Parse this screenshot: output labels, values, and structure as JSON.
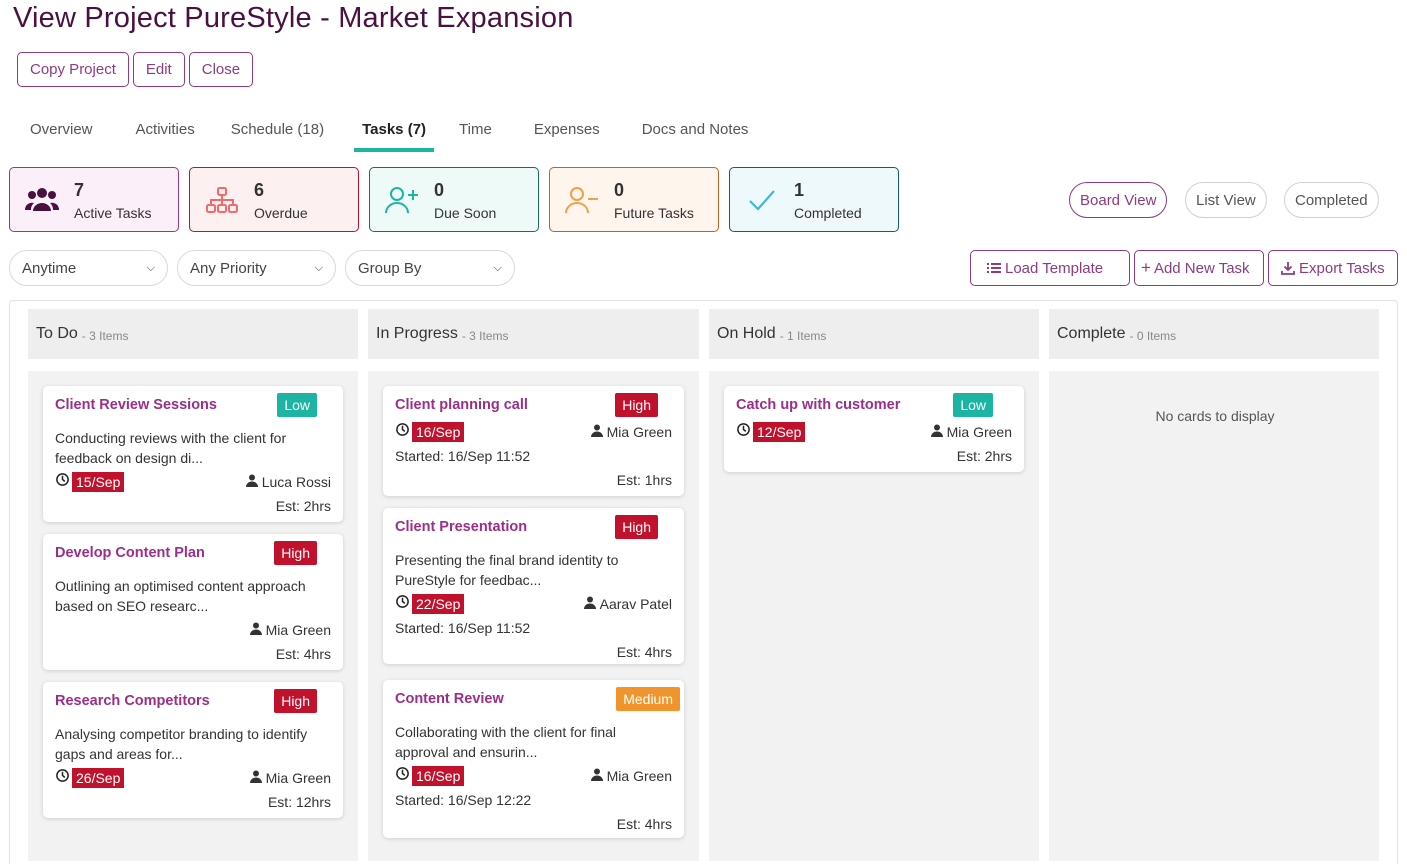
{
  "page": {
    "title": "View Project PureStyle - Market Expansion"
  },
  "actions": {
    "copy": "Copy Project",
    "edit": "Edit",
    "close": "Close"
  },
  "tabs": [
    {
      "label": "Overview"
    },
    {
      "label": "Activities"
    },
    {
      "label": "Schedule (18)"
    },
    {
      "label": "Tasks (7)"
    },
    {
      "label": "Time"
    },
    {
      "label": "Expenses"
    },
    {
      "label": "Docs and Notes"
    }
  ],
  "stats": [
    {
      "num": "7",
      "label": "Active Tasks",
      "icon": "users-icon",
      "color": "#4a1040"
    },
    {
      "num": "6",
      "label": "Overdue",
      "icon": "hierarchy-icon",
      "color": "#f26b6b"
    },
    {
      "num": "0",
      "label": "Due Soon",
      "icon": "user-plus-icon",
      "color": "#1cb5a3"
    },
    {
      "num": "0",
      "label": "Future Tasks",
      "icon": "user-minus-icon",
      "color": "#f0a04b"
    },
    {
      "num": "1",
      "label": "Completed",
      "icon": "check-icon",
      "color": "#3bb7e0"
    }
  ],
  "views": {
    "board": "Board View",
    "list": "List View",
    "completed": "Completed"
  },
  "filters": {
    "time": "Anytime",
    "priority": "Any Priority",
    "group": "Group By"
  },
  "tools": {
    "load": "Load Template",
    "add": "Add New Task",
    "export": "Export Tasks"
  },
  "columns": [
    {
      "name": "To Do",
      "count": "- 3 Items"
    },
    {
      "name": "In Progress",
      "count": "- 3 Items"
    },
    {
      "name": "On Hold",
      "count": "- 1 Items"
    },
    {
      "name": "Complete",
      "count": "- 0 Items"
    }
  ],
  "empty_text": "No cards to display",
  "cards": {
    "c1": {
      "title": "Client Review Sessions",
      "priority": "Low",
      "desc": "Conducting reviews with the client for feedback on design di...",
      "due": "15/Sep",
      "assignee": "Luca Rossi",
      "est": "Est: 2hrs"
    },
    "c2": {
      "title": "Develop Content Plan",
      "priority": "High",
      "desc": "Outlining an optimised content approach based on SEO researc...",
      "assignee": "Mia Green",
      "est": "Est: 4hrs"
    },
    "c3": {
      "title": "Research Competitors",
      "priority": "High",
      "desc": "Analysing competitor branding to identify gaps and areas for...",
      "due": "26/Sep",
      "assignee": "Mia Green",
      "est": "Est: 12hrs"
    },
    "c4": {
      "title": "Client planning call",
      "priority": "High",
      "due": "16/Sep",
      "assignee": "Mia Green",
      "started": "Started: 16/Sep 11:52",
      "est": "Est: 1hrs"
    },
    "c5": {
      "title": "Client Presentation",
      "priority": "High",
      "desc": "Presenting the final brand identity to PureStyle for feedbac...",
      "due": "22/Sep",
      "assignee": "Aarav Patel",
      "started": "Started: 16/Sep 11:52",
      "est": "Est: 4hrs"
    },
    "c6": {
      "title": "Content Review",
      "priority": "Medium",
      "desc": "Collaborating with the client for final approval and ensurin...",
      "due": "16/Sep",
      "assignee": "Mia Green",
      "started": "Started: 16/Sep 12:22",
      "est": "Est: 4hrs"
    },
    "c7": {
      "title": "Catch up with customer",
      "priority": "Low",
      "due": "12/Sep",
      "assignee": "Mia Green",
      "est": "Est: 2hrs"
    }
  },
  "colors": {
    "accent": "#8e3b83",
    "title": "#4a1040",
    "card_title": "#9b2e8a",
    "tab_underline": "#1cb5a3",
    "overdue_red": "#c0112d",
    "medium_orange": "#f0952e"
  }
}
